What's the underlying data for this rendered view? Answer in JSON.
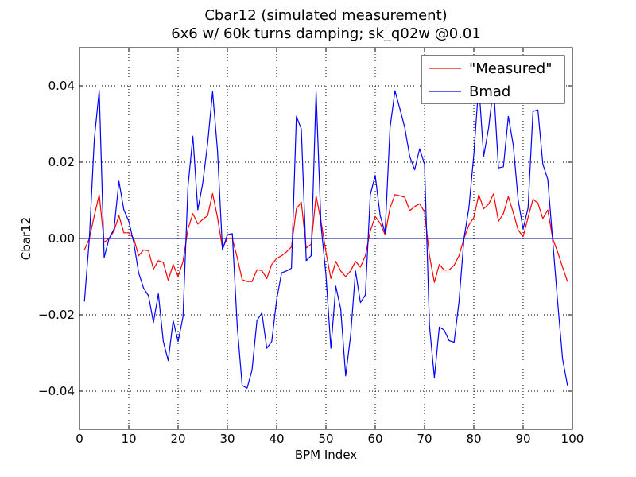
{
  "chart_data": {
    "type": "line",
    "title": "Cbar12 (simulated measurement)",
    "subtitle": "6x6 w/ 60k turns damping; sk_q02w @0.01",
    "xlabel": "BPM Index",
    "ylabel": "Cbar12",
    "xlim": [
      0,
      100
    ],
    "ylim": [
      -0.05,
      0.05
    ],
    "xticks": [
      0,
      10,
      20,
      30,
      40,
      50,
      60,
      70,
      80,
      90,
      100
    ],
    "xtick_labels": [
      "0",
      "10",
      "20",
      "30",
      "40",
      "50",
      "60",
      "70",
      "80",
      "90",
      "100"
    ],
    "yticks": [
      -0.04,
      -0.02,
      0.0,
      0.02,
      0.04
    ],
    "ytick_labels": [
      "−0.04",
      "−0.02",
      "0.00",
      "0.02",
      "0.04"
    ],
    "grid": true,
    "legend_position": "top-right",
    "reference_line_y": 0,
    "reference_line_color": "#00008b",
    "series": [
      {
        "name": "\"Measured\"",
        "color": "#ff0000",
        "x": [
          1,
          2,
          3,
          4,
          5,
          6,
          7,
          8,
          9,
          10,
          11,
          12,
          13,
          14,
          15,
          16,
          17,
          18,
          19,
          20,
          21,
          22,
          23,
          24,
          25,
          26,
          27,
          28,
          29,
          30,
          31,
          32,
          33,
          34,
          35,
          36,
          37,
          38,
          39,
          40,
          41,
          42,
          43,
          44,
          45,
          46,
          47,
          48,
          49,
          50,
          51,
          52,
          53,
          54,
          55,
          56,
          57,
          58,
          59,
          60,
          61,
          62,
          63,
          64,
          65,
          66,
          67,
          68,
          69,
          70,
          71,
          72,
          73,
          74,
          75,
          76,
          77,
          78,
          79,
          80,
          81,
          82,
          83,
          84,
          85,
          86,
          87,
          88,
          89,
          90,
          91,
          92,
          93,
          94,
          95,
          96,
          97,
          98,
          99
        ],
        "y": [
          -0.003,
          0.0,
          0.006,
          0.0115,
          -0.001,
          0.0,
          0.002,
          0.006,
          0.0015,
          0.0015,
          0.0,
          -0.0045,
          -0.003,
          -0.0032,
          -0.008,
          -0.0058,
          -0.0063,
          -0.011,
          -0.0068,
          -0.01,
          -0.006,
          0.0025,
          0.0065,
          0.0038,
          0.005,
          0.006,
          0.0118,
          0.0055,
          -0.0025,
          0.0,
          0.0,
          -0.005,
          -0.0108,
          -0.0113,
          -0.0113,
          -0.0082,
          -0.0084,
          -0.0105,
          -0.0068,
          -0.0052,
          -0.0045,
          -0.0035,
          -0.0022,
          0.0078,
          0.0095,
          -0.0025,
          -0.0015,
          0.0112,
          0.0045,
          -0.0035,
          -0.0105,
          -0.006,
          -0.0085,
          -0.01,
          -0.0085,
          -0.006,
          -0.0075,
          -0.0045,
          0.002,
          0.0058,
          0.004,
          0.001,
          0.008,
          0.0115,
          0.0112,
          0.0108,
          0.0073,
          0.0084,
          0.0091,
          0.007,
          -0.0045,
          -0.0115,
          -0.0068,
          -0.0083,
          -0.0082,
          -0.007,
          -0.0045,
          0.0,
          0.0035,
          0.0055,
          0.0115,
          0.0078,
          0.009,
          0.0117,
          0.0045,
          0.0065,
          0.011,
          0.0068,
          0.0022,
          0.0005,
          0.0055,
          0.0103,
          0.0093,
          0.0052,
          0.0075,
          0.0,
          -0.0035,
          -0.0075,
          -0.0113
        ]
      },
      {
        "name": "Bmad",
        "color": "#0000ff",
        "x": [
          1,
          2,
          3,
          4,
          5,
          6,
          7,
          8,
          9,
          10,
          11,
          12,
          13,
          14,
          15,
          16,
          17,
          18,
          19,
          20,
          21,
          22,
          23,
          24,
          25,
          26,
          27,
          28,
          29,
          30,
          31,
          32,
          33,
          34,
          35,
          36,
          37,
          38,
          39,
          40,
          41,
          42,
          43,
          44,
          45,
          46,
          47,
          48,
          49,
          50,
          51,
          52,
          53,
          54,
          55,
          56,
          57,
          58,
          59,
          60,
          61,
          62,
          63,
          64,
          65,
          66,
          67,
          68,
          69,
          70,
          71,
          72,
          73,
          74,
          75,
          76,
          77,
          78,
          79,
          80,
          81,
          82,
          83,
          84,
          85,
          86,
          87,
          88,
          89,
          90,
          91,
          92,
          93,
          94,
          95,
          96,
          97,
          98,
          99
        ],
        "y": [
          -0.0165,
          0.0,
          0.026,
          0.0388,
          -0.005,
          0.0,
          0.0025,
          0.015,
          0.0075,
          0.0045,
          -0.001,
          -0.009,
          -0.013,
          -0.015,
          -0.022,
          -0.0145,
          -0.027,
          -0.032,
          -0.0215,
          -0.027,
          -0.0205,
          0.0135,
          0.0268,
          0.0075,
          0.0145,
          0.025,
          0.0385,
          0.023,
          -0.003,
          0.001,
          0.0013,
          -0.023,
          -0.0385,
          -0.0392,
          -0.0345,
          -0.0215,
          -0.0195,
          -0.0288,
          -0.027,
          -0.016,
          -0.009,
          -0.0085,
          -0.0078,
          0.032,
          0.0287,
          -0.0058,
          -0.0045,
          0.0385,
          0.0035,
          -0.0095,
          -0.0288,
          -0.0125,
          -0.0185,
          -0.036,
          -0.0255,
          -0.0085,
          -0.0168,
          -0.0148,
          0.0115,
          0.0165,
          0.006,
          0.0015,
          0.029,
          0.0387,
          0.034,
          0.029,
          0.0215,
          0.018,
          0.0235,
          0.0195,
          -0.0228,
          -0.0365,
          -0.0232,
          -0.024,
          -0.0268,
          -0.0272,
          -0.0165,
          0.0,
          0.008,
          0.022,
          0.0405,
          0.0215,
          0.029,
          0.04,
          0.0185,
          0.0188,
          0.032,
          0.0245,
          0.01,
          0.0025,
          0.008,
          0.0333,
          0.0337,
          0.0195,
          0.0155,
          -0.0005,
          -0.0165,
          -0.0315,
          -0.0385
        ]
      }
    ]
  }
}
